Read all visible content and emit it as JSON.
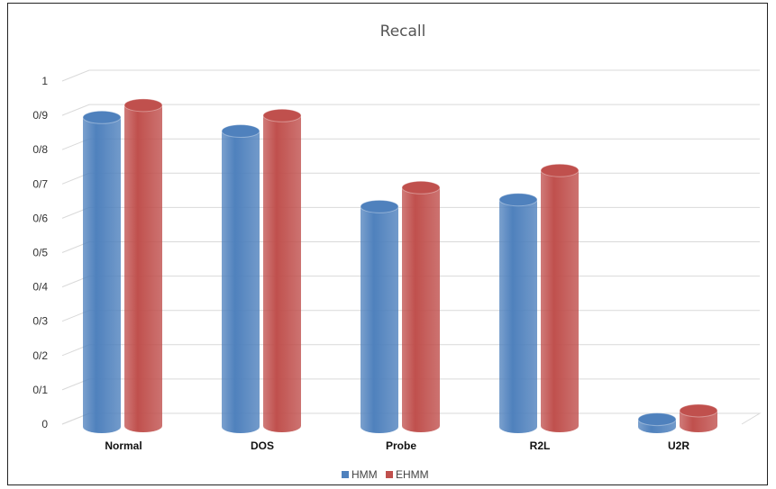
{
  "chart_data": {
    "type": "bar",
    "title": "Recall",
    "xlabel": "",
    "ylabel": "",
    "categories": [
      "Normal",
      "DOS",
      "Probe",
      "R2L",
      "U2R"
    ],
    "series": [
      {
        "name": "HMM",
        "color": "#4f81bd",
        "values": [
          0.91,
          0.87,
          0.65,
          0.67,
          0.03
        ]
      },
      {
        "name": "EHMM",
        "color": "#c0504d",
        "values": [
          0.94,
          0.91,
          0.7,
          0.75,
          0.05
        ]
      }
    ],
    "y_ticks": [
      "0",
      "0/1",
      "0/2",
      "0/3",
      "0/4",
      "0/5",
      "0/6",
      "0/7",
      "0/8",
      "0/9",
      "1"
    ],
    "ylim": [
      0,
      1
    ],
    "grid": true,
    "legend": "bottom-center",
    "style": "3d-cylinder"
  }
}
